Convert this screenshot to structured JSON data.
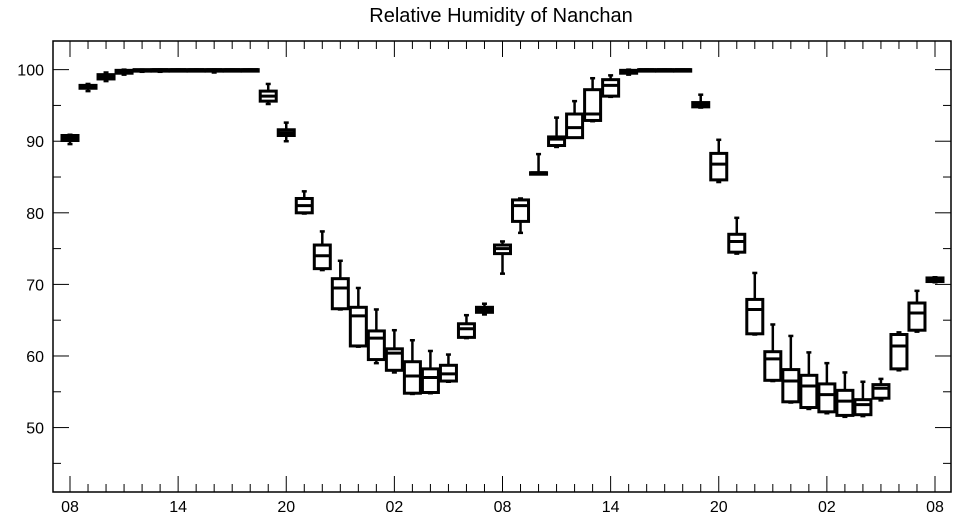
{
  "chart_data": {
    "type": "box",
    "title": "Relative Humidity of Nanchan",
    "xlabel": "",
    "ylabel": "",
    "x_hours_range": [
      0,
      48
    ],
    "x_tick_labels": [
      "08",
      "14",
      "20",
      "02",
      "08",
      "14",
      "20",
      "02",
      "08"
    ],
    "x_tick_hours": [
      0,
      6,
      12,
      18,
      24,
      30,
      36,
      42,
      48
    ],
    "ylim": [
      41,
      104
    ],
    "y_ticks": [
      50,
      60,
      70,
      80,
      90,
      100
    ],
    "grid": false,
    "boxes": [
      {
        "t": 0,
        "min": 89.6,
        "q1": 90.1,
        "median": 90.5,
        "q3": 90.8,
        "max": 90.9
      },
      {
        "t": 1,
        "min": 97.0,
        "q1": 97.4,
        "median": 97.6,
        "q3": 97.8,
        "max": 98.0
      },
      {
        "t": 2,
        "min": 98.4,
        "q1": 98.7,
        "median": 99.0,
        "q3": 99.3,
        "max": 99.6
      },
      {
        "t": 3,
        "min": 99.3,
        "q1": 99.5,
        "median": 99.7,
        "q3": 99.9,
        "max": 100
      },
      {
        "t": 4,
        "min": 99.7,
        "q1": 99.8,
        "median": 99.9,
        "q3": 100,
        "max": 100
      },
      {
        "t": 5,
        "min": 99.7,
        "q1": 99.9,
        "median": 100,
        "q3": 100,
        "max": 100
      },
      {
        "t": 6,
        "min": 100,
        "q1": 100,
        "median": 100,
        "q3": 100,
        "max": 100
      },
      {
        "t": 7,
        "min": 100,
        "q1": 100,
        "median": 100,
        "q3": 100,
        "max": 100
      },
      {
        "t": 8,
        "min": 99.6,
        "q1": 99.9,
        "median": 100,
        "q3": 100,
        "max": 100
      },
      {
        "t": 9,
        "min": 100,
        "q1": 100,
        "median": 100,
        "q3": 100,
        "max": 100
      },
      {
        "t": 10,
        "min": 100,
        "q1": 100,
        "median": 100,
        "q3": 100,
        "max": 100
      },
      {
        "t": 11,
        "min": 95.2,
        "q1": 95.6,
        "median": 96.3,
        "q3": 97.0,
        "max": 98.0
      },
      {
        "t": 12,
        "min": 90.0,
        "q1": 90.8,
        "median": 91.2,
        "q3": 91.6,
        "max": 92.6
      },
      {
        "t": 13,
        "min": 79.9,
        "q1": 80.0,
        "median": 81.0,
        "q3": 82.0,
        "max": 83.0
      },
      {
        "t": 14,
        "min": 72.0,
        "q1": 72.2,
        "median": 74.0,
        "q3": 75.5,
        "max": 77.4
      },
      {
        "t": 15,
        "min": 66.5,
        "q1": 66.6,
        "median": 69.5,
        "q3": 70.8,
        "max": 73.3
      },
      {
        "t": 16,
        "min": 61.3,
        "q1": 61.4,
        "median": 65.6,
        "q3": 66.8,
        "max": 69.5
      },
      {
        "t": 17,
        "min": 59.0,
        "q1": 59.5,
        "median": 62.5,
        "q3": 63.5,
        "max": 66.5
      },
      {
        "t": 18,
        "min": 57.7,
        "q1": 58.0,
        "median": 60.4,
        "q3": 61.0,
        "max": 63.6
      },
      {
        "t": 19,
        "min": 54.7,
        "q1": 54.8,
        "median": 57.2,
        "q3": 59.2,
        "max": 62.2
      },
      {
        "t": 20,
        "min": 54.8,
        "q1": 54.9,
        "median": 57.0,
        "q3": 58.2,
        "max": 60.7
      },
      {
        "t": 21,
        "min": 56.4,
        "q1": 56.5,
        "median": 57.5,
        "q3": 58.7,
        "max": 60.2
      },
      {
        "t": 22,
        "min": 62.5,
        "q1": 62.6,
        "median": 63.8,
        "q3": 64.5,
        "max": 65.7
      },
      {
        "t": 23,
        "min": 65.8,
        "q1": 66.1,
        "median": 66.5,
        "q3": 66.8,
        "max": 67.3
      },
      {
        "t": 24,
        "min": 71.5,
        "q1": 74.3,
        "median": 75.0,
        "q3": 75.5,
        "max": 76.0
      },
      {
        "t": 25,
        "min": 77.2,
        "q1": 78.8,
        "median": 81.0,
        "q3": 81.8,
        "max": 82.0
      },
      {
        "t": 26,
        "min": 85.5,
        "q1": 85.6,
        "median": 85.6,
        "q3": 85.6,
        "max": 88.2
      },
      {
        "t": 27,
        "min": 89.2,
        "q1": 89.4,
        "median": 90.3,
        "q3": 90.6,
        "max": 93.3
      },
      {
        "t": 28,
        "min": 90.5,
        "q1": 90.5,
        "median": 91.9,
        "q3": 93.8,
        "max": 95.6
      },
      {
        "t": 29,
        "min": 92.8,
        "q1": 92.9,
        "median": 93.8,
        "q3": 97.2,
        "max": 98.8
      },
      {
        "t": 30,
        "min": 96.2,
        "q1": 96.3,
        "median": 97.8,
        "q3": 98.6,
        "max": 99.2
      },
      {
        "t": 31,
        "min": 99.3,
        "q1": 99.5,
        "median": 99.7,
        "q3": 99.9,
        "max": 100
      },
      {
        "t": 32,
        "min": 100,
        "q1": 100,
        "median": 100,
        "q3": 100,
        "max": 100
      },
      {
        "t": 33,
        "min": 100,
        "q1": 100,
        "median": 100,
        "q3": 100,
        "max": 100
      },
      {
        "t": 34,
        "min": 100,
        "q1": 100,
        "median": 100,
        "q3": 100,
        "max": 100
      },
      {
        "t": 35,
        "min": 94.7,
        "q1": 94.8,
        "median": 95.0,
        "q3": 95.4,
        "max": 96.5
      },
      {
        "t": 36,
        "min": 84.3,
        "q1": 84.6,
        "median": 86.8,
        "q3": 88.3,
        "max": 90.2
      },
      {
        "t": 37,
        "min": 74.3,
        "q1": 74.5,
        "median": 76.0,
        "q3": 77.0,
        "max": 79.3
      },
      {
        "t": 38,
        "min": 63.0,
        "q1": 63.1,
        "median": 66.5,
        "q3": 67.9,
        "max": 71.6
      },
      {
        "t": 39,
        "min": 56.5,
        "q1": 56.6,
        "median": 59.6,
        "q3": 60.6,
        "max": 64.4
      },
      {
        "t": 40,
        "min": 53.5,
        "q1": 53.6,
        "median": 56.5,
        "q3": 58.1,
        "max": 62.8
      },
      {
        "t": 41,
        "min": 52.6,
        "q1": 52.8,
        "median": 55.8,
        "q3": 57.3,
        "max": 60.5
      },
      {
        "t": 42,
        "min": 52.0,
        "q1": 52.2,
        "median": 54.6,
        "q3": 56.1,
        "max": 59.0
      },
      {
        "t": 43,
        "min": 51.5,
        "q1": 51.7,
        "median": 53.7,
        "q3": 55.2,
        "max": 57.7
      },
      {
        "t": 44,
        "min": 51.6,
        "q1": 51.8,
        "median": 53.2,
        "q3": 53.9,
        "max": 56.4
      },
      {
        "t": 45,
        "min": 53.8,
        "q1": 54.1,
        "median": 55.5,
        "q3": 56.0,
        "max": 56.8
      },
      {
        "t": 46,
        "min": 58.0,
        "q1": 58.2,
        "median": 61.4,
        "q3": 63.0,
        "max": 63.3
      },
      {
        "t": 47,
        "min": 63.4,
        "q1": 63.6,
        "median": 66.0,
        "q3": 67.4,
        "max": 69.1
      },
      {
        "t": 48,
        "min": 70.3,
        "q1": 70.4,
        "median": 70.6,
        "q3": 70.9,
        "max": 71.0
      }
    ]
  }
}
